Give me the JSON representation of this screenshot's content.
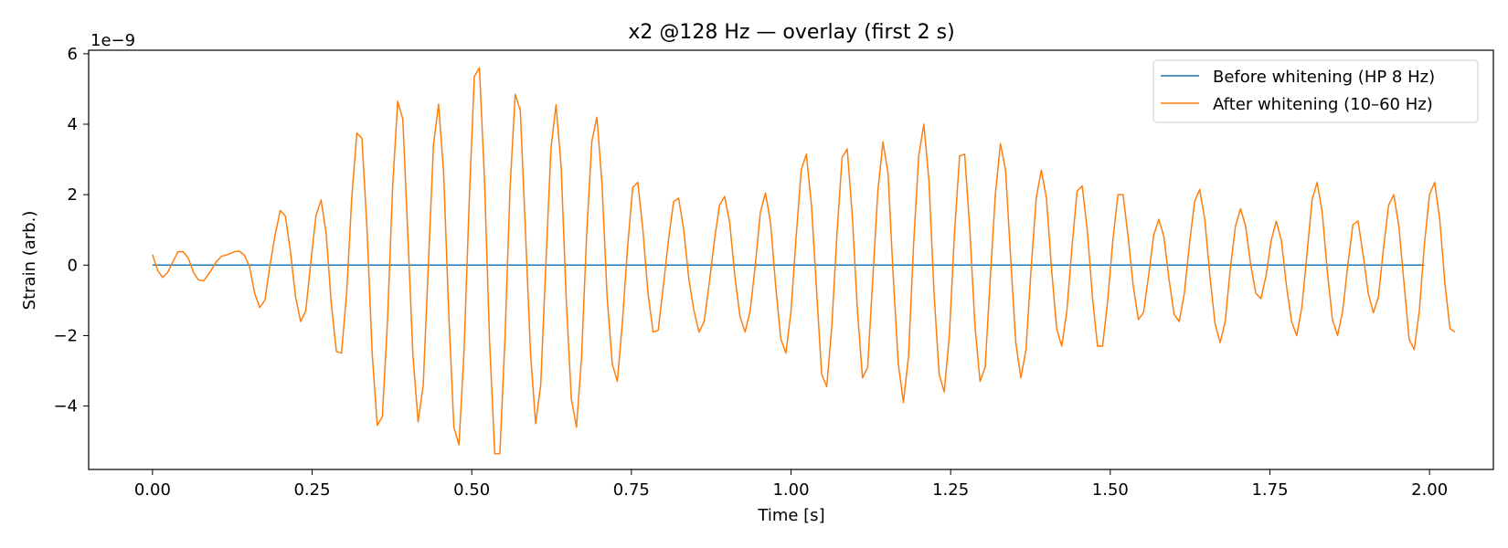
{
  "chart_data": {
    "type": "line",
    "title": "x2 @128 Hz — overlay (first 2 s)",
    "xlabel": "Time [s]",
    "ylabel": "Strain (arb.)",
    "y_scale_label": "1e−9",
    "y_multiplier": 1e-09,
    "xlim": [
      -0.1,
      2.1
    ],
    "ylim": [
      -5.8,
      6.1
    ],
    "x_ticks": [
      0.0,
      0.25,
      0.5,
      0.75,
      1.0,
      1.25,
      1.5,
      1.75,
      2.0
    ],
    "x_tick_labels": [
      "0.00",
      "0.25",
      "0.50",
      "0.75",
      "1.00",
      "1.25",
      "1.50",
      "1.75",
      "2.00"
    ],
    "y_ticks": [
      -4,
      -2,
      0,
      2,
      4,
      6
    ],
    "y_tick_labels": [
      "−4",
      "−2",
      "0",
      "2",
      "4",
      "6"
    ],
    "grid": false,
    "legend_position": "top-right",
    "series": [
      {
        "name": "Before whitening (HP 8 Hz)",
        "color": "#1f77b4",
        "points": [
          [
            0.0,
            0.0
          ],
          [
            1.992,
            0.0
          ]
        ]
      },
      {
        "name": "After whitening (10–60 Hz)",
        "color": "#ff7f0e",
        "points": [
          [
            0.0,
            0.3
          ],
          [
            0.008,
            -0.15
          ],
          [
            0.016,
            -0.35
          ],
          [
            0.024,
            -0.2
          ],
          [
            0.032,
            0.1
          ],
          [
            0.04,
            0.38
          ],
          [
            0.048,
            0.38
          ],
          [
            0.056,
            0.2
          ],
          [
            0.064,
            -0.2
          ],
          [
            0.072,
            -0.42
          ],
          [
            0.08,
            -0.45
          ],
          [
            0.09,
            -0.2
          ],
          [
            0.1,
            0.1
          ],
          [
            0.108,
            0.25
          ],
          [
            0.118,
            0.3
          ],
          [
            0.128,
            0.38
          ],
          [
            0.136,
            0.4
          ],
          [
            0.144,
            0.28
          ],
          [
            0.152,
            -0.05
          ],
          [
            0.16,
            -0.8
          ],
          [
            0.168,
            -1.2
          ],
          [
            0.176,
            -1.0
          ],
          [
            0.184,
            0.0
          ],
          [
            0.192,
            0.85
          ],
          [
            0.2,
            1.55
          ],
          [
            0.208,
            1.4
          ],
          [
            0.216,
            0.4
          ],
          [
            0.224,
            -0.9
          ],
          [
            0.232,
            -1.6
          ],
          [
            0.24,
            -1.3
          ],
          [
            0.248,
            0.1
          ],
          [
            0.256,
            1.4
          ],
          [
            0.264,
            1.85
          ],
          [
            0.272,
            0.9
          ],
          [
            0.28,
            -1.1
          ],
          [
            0.288,
            -2.45
          ],
          [
            0.296,
            -2.5
          ],
          [
            0.304,
            -0.8
          ],
          [
            0.312,
            1.9
          ],
          [
            0.32,
            3.75
          ],
          [
            0.328,
            3.6
          ],
          [
            0.336,
            1.0
          ],
          [
            0.344,
            -2.5
          ],
          [
            0.352,
            -4.55
          ],
          [
            0.36,
            -4.3
          ],
          [
            0.368,
            -1.6
          ],
          [
            0.376,
            2.2
          ],
          [
            0.384,
            4.65
          ],
          [
            0.392,
            4.15
          ],
          [
            0.4,
            0.8
          ],
          [
            0.408,
            -2.6
          ],
          [
            0.416,
            -4.45
          ],
          [
            0.424,
            -3.4
          ],
          [
            0.432,
            0.0
          ],
          [
            0.44,
            3.4
          ],
          [
            0.448,
            4.57
          ],
          [
            0.456,
            2.6
          ],
          [
            0.464,
            -1.4
          ],
          [
            0.472,
            -4.6
          ],
          [
            0.48,
            -5.1
          ],
          [
            0.488,
            -2.4
          ],
          [
            0.496,
            1.8
          ],
          [
            0.504,
            5.35
          ],
          [
            0.512,
            5.6
          ],
          [
            0.52,
            2.4
          ],
          [
            0.528,
            -2.2
          ],
          [
            0.536,
            -5.35
          ],
          [
            0.544,
            -5.35
          ],
          [
            0.552,
            -2.1
          ],
          [
            0.56,
            2.2
          ],
          [
            0.568,
            4.85
          ],
          [
            0.576,
            4.4
          ],
          [
            0.584,
            1.0
          ],
          [
            0.592,
            -2.5
          ],
          [
            0.6,
            -4.5
          ],
          [
            0.608,
            -3.4
          ],
          [
            0.616,
            0.0
          ],
          [
            0.624,
            3.3
          ],
          [
            0.632,
            4.55
          ],
          [
            0.64,
            2.8
          ],
          [
            0.648,
            -1.0
          ],
          [
            0.656,
            -3.8
          ],
          [
            0.664,
            -4.6
          ],
          [
            0.672,
            -2.6
          ],
          [
            0.68,
            0.9
          ],
          [
            0.688,
            3.5
          ],
          [
            0.696,
            4.2
          ],
          [
            0.704,
            2.3
          ],
          [
            0.712,
            -0.9
          ],
          [
            0.72,
            -2.8
          ],
          [
            0.728,
            -3.3
          ],
          [
            0.736,
            -1.6
          ],
          [
            0.744,
            0.5
          ],
          [
            0.752,
            2.2
          ],
          [
            0.76,
            2.35
          ],
          [
            0.768,
            1.0
          ],
          [
            0.776,
            -0.8
          ],
          [
            0.784,
            -1.9
          ],
          [
            0.792,
            -1.85
          ],
          [
            0.8,
            -0.6
          ],
          [
            0.808,
            0.7
          ],
          [
            0.816,
            1.8
          ],
          [
            0.824,
            1.9
          ],
          [
            0.832,
            1.0
          ],
          [
            0.84,
            -0.4
          ],
          [
            0.848,
            -1.3
          ],
          [
            0.856,
            -1.9
          ],
          [
            0.864,
            -1.6
          ],
          [
            0.872,
            -0.5
          ],
          [
            0.88,
            0.7
          ],
          [
            0.888,
            1.7
          ],
          [
            0.896,
            1.95
          ],
          [
            0.904,
            1.2
          ],
          [
            0.912,
            -0.3
          ],
          [
            0.92,
            -1.45
          ],
          [
            0.928,
            -1.9
          ],
          [
            0.936,
            -1.3
          ],
          [
            0.944,
            0.0
          ],
          [
            0.952,
            1.5
          ],
          [
            0.96,
            2.05
          ],
          [
            0.968,
            1.2
          ],
          [
            0.976,
            -0.6
          ],
          [
            0.984,
            -2.1
          ],
          [
            0.992,
            -2.5
          ],
          [
            1.0,
            -1.3
          ],
          [
            1.008,
            0.8
          ],
          [
            1.016,
            2.7
          ],
          [
            1.024,
            3.15
          ],
          [
            1.032,
            1.7
          ],
          [
            1.04,
            -0.7
          ],
          [
            1.048,
            -3.1
          ],
          [
            1.056,
            -3.45
          ],
          [
            1.064,
            -1.7
          ],
          [
            1.072,
            0.9
          ],
          [
            1.08,
            3.05
          ],
          [
            1.088,
            3.3
          ],
          [
            1.096,
            1.4
          ],
          [
            1.104,
            -1.3
          ],
          [
            1.112,
            -3.2
          ],
          [
            1.12,
            -2.9
          ],
          [
            1.128,
            -0.4
          ],
          [
            1.136,
            2.1
          ],
          [
            1.144,
            3.5
          ],
          [
            1.152,
            2.6
          ],
          [
            1.16,
            -0.3
          ],
          [
            1.168,
            -2.8
          ],
          [
            1.176,
            -3.9
          ],
          [
            1.184,
            -2.6
          ],
          [
            1.192,
            0.6
          ],
          [
            1.2,
            3.1
          ],
          [
            1.208,
            4.0
          ],
          [
            1.216,
            2.4
          ],
          [
            1.224,
            -0.8
          ],
          [
            1.232,
            -3.1
          ],
          [
            1.24,
            -3.6
          ],
          [
            1.248,
            -2.0
          ],
          [
            1.256,
            0.9
          ],
          [
            1.264,
            3.1
          ],
          [
            1.272,
            3.15
          ],
          [
            1.28,
            1.0
          ],
          [
            1.288,
            -1.7
          ],
          [
            1.296,
            -3.3
          ],
          [
            1.304,
            -2.9
          ],
          [
            1.312,
            -0.4
          ],
          [
            1.32,
            2.0
          ],
          [
            1.328,
            3.45
          ],
          [
            1.336,
            2.7
          ],
          [
            1.344,
            0.2
          ],
          [
            1.352,
            -2.2
          ],
          [
            1.36,
            -3.2
          ],
          [
            1.368,
            -2.4
          ],
          [
            1.376,
            -0.1
          ],
          [
            1.384,
            1.9
          ],
          [
            1.392,
            2.7
          ],
          [
            1.4,
            1.9
          ],
          [
            1.408,
            -0.1
          ],
          [
            1.416,
            -1.8
          ],
          [
            1.424,
            -2.3
          ],
          [
            1.432,
            -1.3
          ],
          [
            1.44,
            0.5
          ],
          [
            1.448,
            2.1
          ],
          [
            1.456,
            2.25
          ],
          [
            1.464,
            1.0
          ],
          [
            1.472,
            -0.9
          ],
          [
            1.48,
            -2.3
          ],
          [
            1.488,
            -2.3
          ],
          [
            1.496,
            -1.0
          ],
          [
            1.504,
            0.7
          ],
          [
            1.512,
            2.0
          ],
          [
            1.52,
            2.0
          ],
          [
            1.528,
            0.8
          ],
          [
            1.536,
            -0.6
          ],
          [
            1.544,
            -1.55
          ],
          [
            1.552,
            -1.35
          ],
          [
            1.56,
            -0.3
          ],
          [
            1.568,
            0.85
          ],
          [
            1.576,
            1.3
          ],
          [
            1.584,
            0.8
          ],
          [
            1.592,
            -0.4
          ],
          [
            1.6,
            -1.4
          ],
          [
            1.608,
            -1.6
          ],
          [
            1.616,
            -0.8
          ],
          [
            1.624,
            0.6
          ],
          [
            1.632,
            1.8
          ],
          [
            1.64,
            2.15
          ],
          [
            1.648,
            1.3
          ],
          [
            1.656,
            -0.3
          ],
          [
            1.664,
            -1.65
          ],
          [
            1.672,
            -2.2
          ],
          [
            1.68,
            -1.6
          ],
          [
            1.688,
            -0.1
          ],
          [
            1.696,
            1.1
          ],
          [
            1.704,
            1.6
          ],
          [
            1.712,
            1.1
          ],
          [
            1.72,
            0.0
          ],
          [
            1.728,
            -0.8
          ],
          [
            1.736,
            -0.95
          ],
          [
            1.744,
            -0.3
          ],
          [
            1.752,
            0.7
          ],
          [
            1.76,
            1.25
          ],
          [
            1.768,
            0.7
          ],
          [
            1.776,
            -0.6
          ],
          [
            1.784,
            -1.6
          ],
          [
            1.792,
            -2.0
          ],
          [
            1.8,
            -1.2
          ],
          [
            1.808,
            0.3
          ],
          [
            1.816,
            1.85
          ],
          [
            1.824,
            2.35
          ],
          [
            1.832,
            1.5
          ],
          [
            1.84,
            -0.2
          ],
          [
            1.848,
            -1.55
          ],
          [
            1.856,
            -2.0
          ],
          [
            1.864,
            -1.3
          ],
          [
            1.872,
            0.0
          ],
          [
            1.88,
            1.15
          ],
          [
            1.888,
            1.25
          ],
          [
            1.896,
            0.3
          ],
          [
            1.904,
            -0.8
          ],
          [
            1.912,
            -1.35
          ],
          [
            1.92,
            -0.9
          ],
          [
            1.928,
            0.5
          ],
          [
            1.936,
            1.7
          ],
          [
            1.944,
            2.0
          ],
          [
            1.952,
            1.1
          ],
          [
            1.96,
            -0.5
          ],
          [
            1.968,
            -2.1
          ],
          [
            1.976,
            -2.4
          ],
          [
            1.984,
            -1.3
          ],
          [
            1.992,
            0.6
          ],
          [
            2.0,
            2.0
          ],
          [
            2.008,
            2.35
          ],
          [
            2.016,
            1.3
          ],
          [
            2.024,
            -0.5
          ],
          [
            2.032,
            -1.8
          ],
          [
            2.04,
            -1.9
          ]
        ]
      }
    ]
  }
}
